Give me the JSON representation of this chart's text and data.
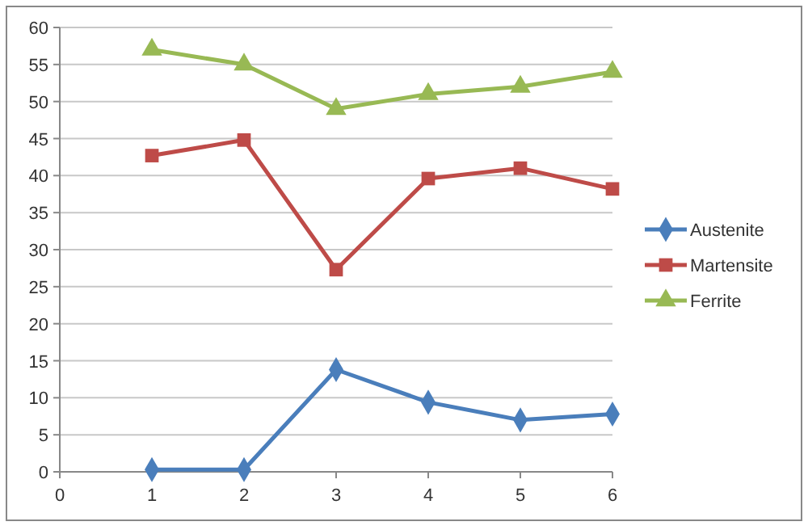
{
  "chart_data": {
    "type": "line",
    "x": [
      1,
      2,
      3,
      4,
      5,
      6
    ],
    "xlim": [
      0,
      6
    ],
    "xticks": [
      0,
      1,
      2,
      3,
      4,
      5,
      6
    ],
    "ylim": [
      0,
      60
    ],
    "yticks": [
      0,
      5,
      10,
      15,
      20,
      25,
      30,
      35,
      40,
      45,
      50,
      55,
      60
    ],
    "grid": "y",
    "legend": "right",
    "line_style": "solid",
    "series": [
      {
        "name": "Austenite",
        "color": "#4a7ebb",
        "marker": "diamond",
        "values": [
          0.3,
          0.3,
          13.8,
          9.4,
          7,
          7.8
        ]
      },
      {
        "name": "Martensite",
        "color": "#be4b48",
        "marker": "square",
        "values": [
          42.7,
          44.8,
          27.3,
          39.6,
          41,
          38.2
        ]
      },
      {
        "name": "Ferrite",
        "color": "#98b954",
        "marker": "triangle",
        "values": [
          57,
          55,
          49,
          51,
          52,
          54
        ]
      }
    ]
  }
}
